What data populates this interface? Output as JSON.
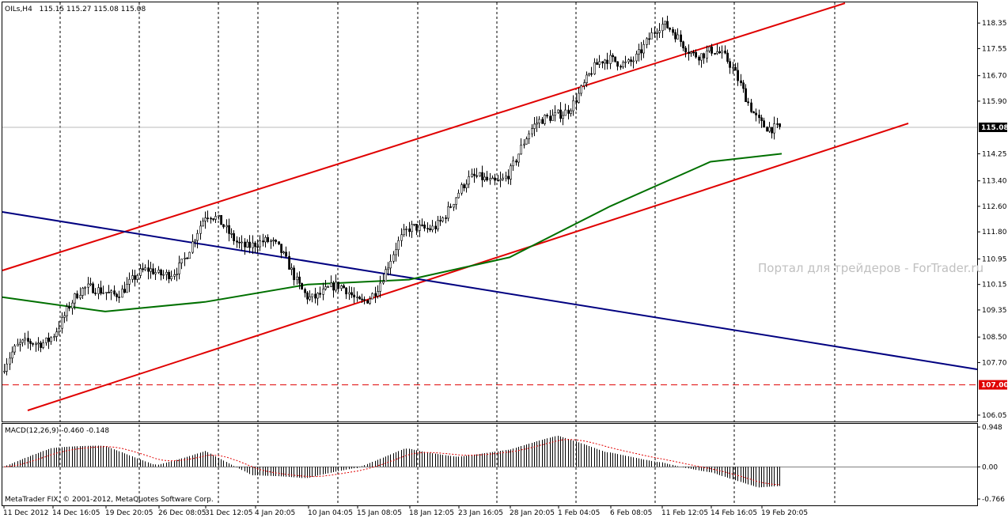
{
  "header": {
    "symbol": "OILs,H4",
    "ohlc": "115.15 115.27 115.08 115.08"
  },
  "watermark": "Портал для трейдеров - ForTrader.ru",
  "copyright": "MetaTrader FIX, © 2001-2012, MetaQuotes Software Corp.",
  "macd_panel": {
    "label": "MACD(12,26,9) -0.460 -0.148",
    "ticks": [
      "0.948",
      "0.00",
      "-0.766"
    ],
    "tick_values": [
      0.948,
      0.0,
      -0.766
    ]
  },
  "price_tag": {
    "text": "115.08",
    "value": 115.08
  },
  "level_tag": {
    "text": "107.00",
    "value": 107.0
  },
  "colors": {
    "candles": "#000000",
    "channel": "#e00000",
    "trend_down": "#000080",
    "moving_average": "#007000",
    "macd_hist": "#000000",
    "macd_signal": "#e00000",
    "tag_bg": "#000000",
    "level_tag_bg": "#e00000"
  },
  "chart_data": {
    "type": "candlestick",
    "title": "OILs,H4",
    "ylim": [
      105.85,
      118.85
    ],
    "y_ticks": [
      "118.35",
      "117.55",
      "116.70",
      "115.90",
      "115.08",
      "114.25",
      "113.40",
      "112.60",
      "111.80",
      "110.95",
      "110.15",
      "109.35",
      "108.50",
      "107.70",
      "107.00",
      "106.05"
    ],
    "y_tick_values": [
      118.35,
      117.55,
      116.7,
      115.9,
      115.08,
      114.25,
      113.4,
      112.6,
      111.8,
      110.95,
      110.15,
      109.35,
      108.5,
      107.7,
      107.0,
      106.05
    ],
    "x_labels": [
      "11 Dec 2012",
      "14 Dec 16:05",
      "19 Dec 20:05",
      "26 Dec 08:05",
      "31 Dec 12:05",
      "4 Jan 20:05",
      "10 Jan 04:05",
      "15 Jan 08:05",
      "18 Jan 12:05",
      "23 Jan 16:05",
      "28 Jan 20:05",
      "1 Feb 04:05",
      "6 Feb 08:05",
      "11 Feb 12:05",
      "14 Feb 16:05",
      "19 Feb 20:05"
    ],
    "close_series": [
      {
        "x": "11 Dec 2012",
        "y": 107.4
      },
      {
        "x": "14 Dec 16:05",
        "y": 108.6
      },
      {
        "x": "19 Dec 20:05",
        "y": 110.2
      },
      {
        "x": "26 Dec 08:05",
        "y": 110.6
      },
      {
        "x": "31 Dec 12:05",
        "y": 112.0
      },
      {
        "x": "4 Jan 20:05",
        "y": 111.3
      },
      {
        "x": "10 Jan 04:05",
        "y": 110.1
      },
      {
        "x": "15 Jan 08:05",
        "y": 109.9
      },
      {
        "x": "18 Jan 12:05",
        "y": 111.6
      },
      {
        "x": "23 Jan 16:05",
        "y": 112.6
      },
      {
        "x": "28 Jan 20:05",
        "y": 113.9
      },
      {
        "x": "1 Feb 04:05",
        "y": 116.0
      },
      {
        "x": "6 Feb 08:05",
        "y": 117.1
      },
      {
        "x": "11 Feb 12:05",
        "y": 117.7
      },
      {
        "x": "14 Feb 16:05",
        "y": 117.5
      },
      {
        "x": "19 Feb 20:05",
        "y": 115.08
      }
    ],
    "moving_average": [
      {
        "x": "11 Dec 2012",
        "y": 109.75
      },
      {
        "x": "19 Dec 20:05",
        "y": 109.3
      },
      {
        "x": "31 Dec 12:05",
        "y": 109.6
      },
      {
        "x": "10 Jan 04:05",
        "y": 110.15
      },
      {
        "x": "18 Jan 12:05",
        "y": 110.3
      },
      {
        "x": "28 Jan 20:05",
        "y": 111.0
      },
      {
        "x": "6 Feb 08:05",
        "y": 112.6
      },
      {
        "x": "14 Feb 16:05",
        "y": 114.0
      },
      {
        "x": "19 Feb 20:05",
        "y": 114.25
      }
    ],
    "support_level": 107.0,
    "last_price": 115.08
  }
}
